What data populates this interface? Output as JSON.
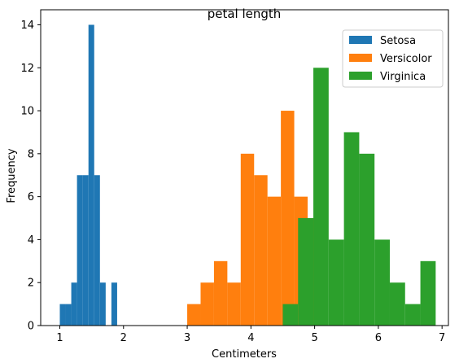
{
  "chart_data": {
    "type": "bar",
    "title": "petal length",
    "xlabel": "Centimeters",
    "ylabel": "Frequency",
    "xlim": [
      0.7,
      7.1
    ],
    "ylim": [
      0,
      14.7
    ],
    "xticks": [
      "1",
      "2",
      "3",
      "4",
      "5",
      "6",
      "7"
    ],
    "yticks": [
      "0",
      "2",
      "4",
      "6",
      "8",
      "10",
      "12",
      "14"
    ],
    "legend_position": "top-right",
    "series": [
      {
        "name": "Setosa",
        "color": "#1f77b4",
        "bins": [
          {
            "x0": 1.0,
            "x1": 1.09,
            "value": 1
          },
          {
            "x0": 1.09,
            "x1": 1.18,
            "value": 1
          },
          {
            "x0": 1.18,
            "x1": 1.27,
            "value": 2
          },
          {
            "x0": 1.27,
            "x1": 1.36,
            "value": 7
          },
          {
            "x0": 1.36,
            "x1": 1.45,
            "value": 7
          },
          {
            "x0": 1.45,
            "x1": 1.54,
            "value": 14
          },
          {
            "x0": 1.54,
            "x1": 1.63,
            "value": 7
          },
          {
            "x0": 1.63,
            "x1": 1.72,
            "value": 2
          },
          {
            "x0": 1.72,
            "x1": 1.81,
            "value": 0
          },
          {
            "x0": 1.81,
            "x1": 1.9,
            "value": 2
          }
        ]
      },
      {
        "name": "Versicolor",
        "color": "#ff7f0e",
        "bins": [
          {
            "x0": 3.0,
            "x1": 3.21,
            "value": 1
          },
          {
            "x0": 3.21,
            "x1": 3.42,
            "value": 2
          },
          {
            "x0": 3.42,
            "x1": 3.63,
            "value": 3
          },
          {
            "x0": 3.63,
            "x1": 3.84,
            "value": 2
          },
          {
            "x0": 3.84,
            "x1": 4.05,
            "value": 8
          },
          {
            "x0": 4.05,
            "x1": 4.26,
            "value": 7
          },
          {
            "x0": 4.26,
            "x1": 4.47,
            "value": 6
          },
          {
            "x0": 4.47,
            "x1": 4.68,
            "value": 10
          },
          {
            "x0": 4.68,
            "x1": 4.89,
            "value": 6
          },
          {
            "x0": 4.89,
            "x1": 5.1,
            "value": 5
          }
        ]
      },
      {
        "name": "Virginica",
        "color": "#2ca02c",
        "bins": [
          {
            "x0": 4.5,
            "x1": 4.74,
            "value": 1
          },
          {
            "x0": 4.74,
            "x1": 4.98,
            "value": 5
          },
          {
            "x0": 4.98,
            "x1": 5.22,
            "value": 12
          },
          {
            "x0": 5.22,
            "x1": 5.46,
            "value": 4
          },
          {
            "x0": 5.46,
            "x1": 5.7,
            "value": 9
          },
          {
            "x0": 5.7,
            "x1": 5.94,
            "value": 8
          },
          {
            "x0": 5.94,
            "x1": 6.18,
            "value": 4
          },
          {
            "x0": 6.18,
            "x1": 6.42,
            "value": 2
          },
          {
            "x0": 6.42,
            "x1": 6.66,
            "value": 1
          },
          {
            "x0": 6.66,
            "x1": 6.9,
            "value": 3
          }
        ]
      }
    ]
  }
}
